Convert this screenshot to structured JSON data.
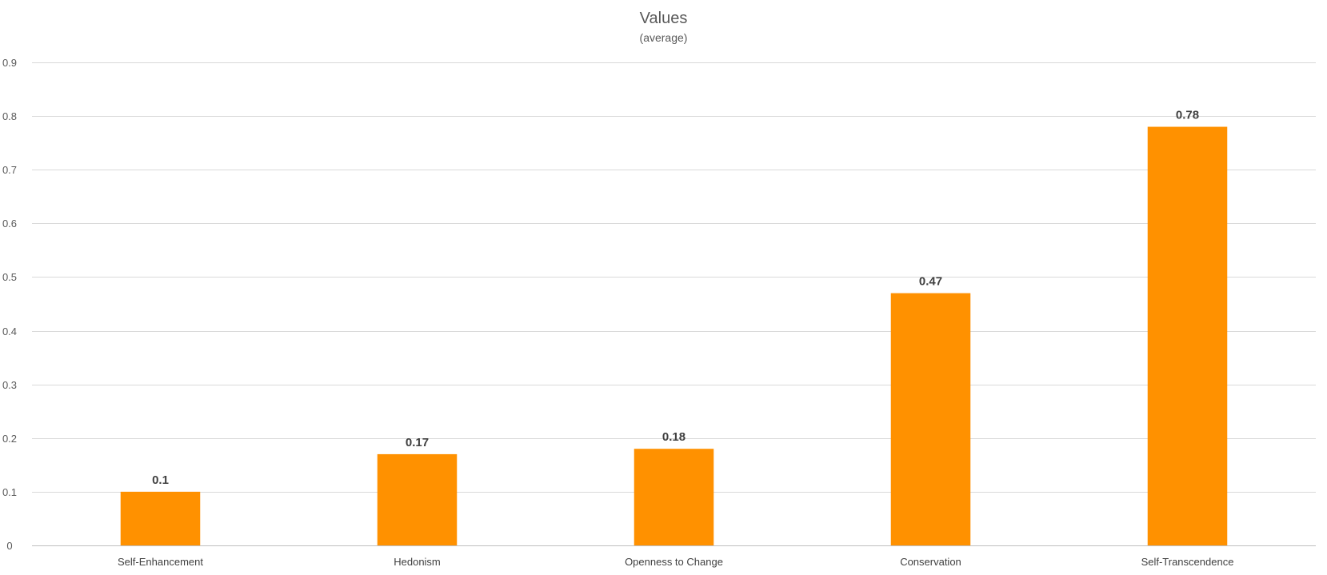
{
  "chart_data": {
    "type": "bar",
    "title": "Values",
    "subtitle": "(average)",
    "xlabel": "",
    "ylabel": "",
    "categories": [
      "Self-Enhancement",
      "Hedonism",
      "Openness to Change",
      "Conservation",
      "Self-Transcendence"
    ],
    "series": [
      {
        "name": "Values",
        "values": [
          0.1,
          0.17,
          0.18,
          0.47,
          0.78
        ],
        "data_labels": [
          "0.1",
          "0.17",
          "0.18",
          "0.47",
          "0.78"
        ],
        "color": "#ff9100"
      }
    ],
    "ylim": [
      0,
      0.9
    ],
    "yticks": [
      0,
      0.1,
      0.2,
      0.3,
      0.4,
      0.5,
      0.6,
      0.7,
      0.8,
      0.9
    ],
    "ytick_labels": [
      "0",
      "0.1",
      "0.2",
      "0.3",
      "0.4",
      "0.5",
      "0.6",
      "0.7",
      "0.8",
      "0.9"
    ],
    "grid": true,
    "legend": "none"
  }
}
